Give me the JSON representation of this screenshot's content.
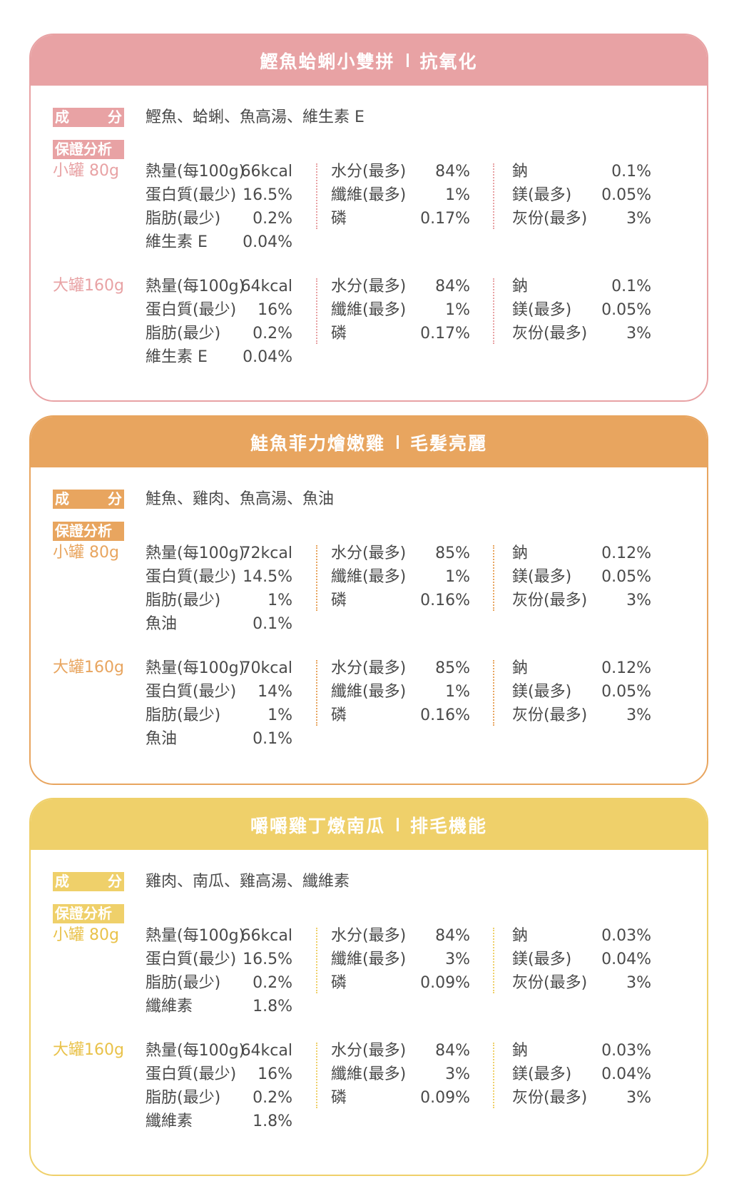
{
  "labels": {
    "ingredients_tag_a": "成",
    "ingredients_tag_b": "分",
    "analysis_tag": "保證分析"
  },
  "products": [
    {
      "title": "鰹魚蛤蜊小雙拼",
      "subtitle": "抗氧化",
      "color": "#e8a2a4",
      "accent": "#e8a2a4",
      "ingredients": "鰹魚、蛤蜊、魚高湯、維生素 E",
      "sizes": [
        {
          "label": "小罐 80g",
          "col1": [
            [
              "熱量(每100g)",
              "66kcal"
            ],
            [
              "蛋白質(最少)",
              "16.5%"
            ],
            [
              "脂肪(最少)",
              "0.2%"
            ],
            [
              "維生素 E",
              "0.04%"
            ]
          ],
          "col2": [
            [
              "水分(最多)",
              "84%"
            ],
            [
              "纖維(最多)",
              "1%"
            ],
            [
              "磷",
              "0.17%"
            ]
          ],
          "col3": [
            [
              "鈉",
              "0.1%"
            ],
            [
              "鎂(最多)",
              "0.05%"
            ],
            [
              "灰份(最多)",
              "3%"
            ]
          ]
        },
        {
          "label": "大罐160g",
          "col1": [
            [
              "熱量(每100g)",
              "64kcal"
            ],
            [
              "蛋白質(最少)",
              "16%"
            ],
            [
              "脂肪(最少)",
              "0.2%"
            ],
            [
              "維生素 E",
              "0.04%"
            ]
          ],
          "col2": [
            [
              "水分(最多)",
              "84%"
            ],
            [
              "纖維(最多)",
              "1%"
            ],
            [
              "磷",
              "0.17%"
            ]
          ],
          "col3": [
            [
              "鈉",
              "0.1%"
            ],
            [
              "鎂(最多)",
              "0.05%"
            ],
            [
              "灰份(最多)",
              "3%"
            ]
          ]
        }
      ]
    },
    {
      "title": "鮭魚菲力燴嫩雞",
      "subtitle": "毛髮亮麗",
      "color": "#e8a55f",
      "accent": "#e8a55f",
      "ingredients": "鮭魚、雞肉、魚高湯、魚油",
      "sizes": [
        {
          "label": "小罐 80g",
          "col1": [
            [
              "熱量(每100g)",
              "72kcal"
            ],
            [
              "蛋白質(最少)",
              "14.5%"
            ],
            [
              "脂肪(最少)",
              "1%"
            ],
            [
              "魚油",
              "0.1%"
            ]
          ],
          "col2": [
            [
              "水分(最多)",
              "85%"
            ],
            [
              "纖維(最多)",
              "1%"
            ],
            [
              "磷",
              "0.16%"
            ]
          ],
          "col3": [
            [
              "鈉",
              "0.12%"
            ],
            [
              "鎂(最多)",
              "0.05%"
            ],
            [
              "灰份(最多)",
              "3%"
            ]
          ]
        },
        {
          "label": "大罐160g",
          "col1": [
            [
              "熱量(每100g)",
              "70kcal"
            ],
            [
              "蛋白質(最少)",
              "14%"
            ],
            [
              "脂肪(最少)",
              "1%"
            ],
            [
              "魚油",
              "0.1%"
            ]
          ],
          "col2": [
            [
              "水分(最多)",
              "85%"
            ],
            [
              "纖維(最多)",
              "1%"
            ],
            [
              "磷",
              "0.16%"
            ]
          ],
          "col3": [
            [
              "鈉",
              "0.12%"
            ],
            [
              "鎂(最多)",
              "0.05%"
            ],
            [
              "灰份(最多)",
              "3%"
            ]
          ]
        }
      ]
    },
    {
      "title": "嚼嚼雞丁燉南瓜",
      "subtitle": "排毛機能",
      "color": "#efd06a",
      "accent": "#e9c24a",
      "ingredients": "雞肉、南瓜、雞高湯、纖維素",
      "sizes": [
        {
          "label": "小罐 80g",
          "col1": [
            [
              "熱量(每100g)",
              "66kcal"
            ],
            [
              "蛋白質(最少)",
              "16.5%"
            ],
            [
              "脂肪(最少)",
              "0.2%"
            ],
            [
              "纖維素",
              "1.8%"
            ]
          ],
          "col2": [
            [
              "水分(最多)",
              "84%"
            ],
            [
              "纖維(最多)",
              "3%"
            ],
            [
              "磷",
              "0.09%"
            ]
          ],
          "col3": [
            [
              "鈉",
              "0.03%"
            ],
            [
              "鎂(最多)",
              "0.04%"
            ],
            [
              "灰份(最多)",
              "3%"
            ]
          ]
        },
        {
          "label": "大罐160g",
          "col1": [
            [
              "熱量(每100g)",
              "64kcal"
            ],
            [
              "蛋白質(最少)",
              "16%"
            ],
            [
              "脂肪(最少)",
              "0.2%"
            ],
            [
              "纖維素",
              "1.8%"
            ]
          ],
          "col2": [
            [
              "水分(最多)",
              "84%"
            ],
            [
              "纖維(最多)",
              "3%"
            ],
            [
              "磷",
              "0.09%"
            ]
          ],
          "col3": [
            [
              "鈉",
              "0.03%"
            ],
            [
              "鎂(最多)",
              "0.04%"
            ],
            [
              "灰份(最多)",
              "3%"
            ]
          ]
        }
      ]
    }
  ]
}
